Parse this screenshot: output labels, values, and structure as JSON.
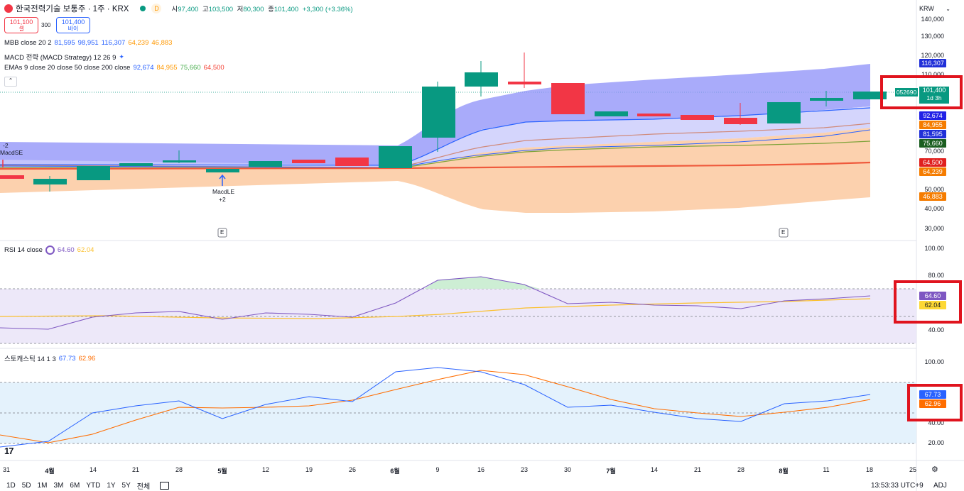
{
  "header": {
    "symbol": "한국전력기술 보통주 · 1주 · KRX",
    "interval_badge": "D",
    "ohlc": [
      {
        "k": "시",
        "v": "97,400"
      },
      {
        "k": "고",
        "v": "103,500"
      },
      {
        "k": "저",
        "v": "80,300"
      },
      {
        "k": "종",
        "v": "101,400"
      }
    ],
    "change": "+3,300 (+3.36%)",
    "currency": "KRW"
  },
  "trade": {
    "sell_price": "101,100",
    "sell_label": "셀",
    "spread": "300",
    "buy_price": "101,400",
    "buy_label": "바이"
  },
  "indicators": {
    "mbb": {
      "name": "MBB close 20 2",
      "v1": "81,595",
      "v2": "98,951",
      "v3": "116,307",
      "v4": "64,239",
      "v5": "46,883"
    },
    "macd": {
      "name": "MACD 전략 (MACD Strategy) 12 26 9"
    },
    "emas": {
      "name": "EMAs 9 close 20 close 50 close 200 close",
      "v1": "92,674",
      "v2": "84,955",
      "v3": "75,660",
      "v4": "64,500"
    }
  },
  "signals": {
    "se_count": "-2",
    "se_label": "MacdSE",
    "le_label": "MacdLE",
    "le_count": "+2",
    "earnings_marker": "E"
  },
  "price_axis": {
    "labels": [
      "140,000",
      "130,000",
      "120,000",
      "110,000",
      "70,000",
      "50,000",
      "40,000",
      "30,000"
    ],
    "tags": {
      "last": "101,400",
      "symbol_code": "052690",
      "countdown": "1d 3h",
      "upper": "116,307",
      "ema9": "92,674",
      "ema20": "84,955",
      "basis": "81,595",
      "ema50": "75,660",
      "ema200": "64,500",
      "lower1": "64,239",
      "lower2": "46,883"
    }
  },
  "rsi": {
    "name": "RSI 14 close",
    "value": "64.60",
    "ma": "62.04",
    "axis": [
      "100.00",
      "80.00",
      "40.00"
    ]
  },
  "stoch": {
    "name": "스토캐스틱 14 1 3",
    "k": "67.73",
    "d": "62.96",
    "axis": [
      "100.00",
      "40.00",
      "20.00"
    ]
  },
  "time_axis": [
    "31",
    "4월",
    "14",
    "21",
    "28",
    "5월",
    "12",
    "19",
    "26",
    "6월",
    "9",
    "16",
    "23",
    "30",
    "7월",
    "14",
    "21",
    "28",
    "8월",
    "11",
    "18",
    "25"
  ],
  "bottom": {
    "timeframes": [
      "1D",
      "5D",
      "1M",
      "3M",
      "6M",
      "YTD",
      "1Y",
      "5Y",
      "전체"
    ],
    "clock": "13:53:33 UTC+9",
    "adj": "ADJ"
  },
  "colors": {
    "up": "#089981",
    "down": "#f23645",
    "upper_band": "#7b7ff8",
    "lower_band": "#fbbf8c",
    "ema9": "#2962ff",
    "ema20": "#ff9800",
    "ema50": "#4caf50",
    "ema200": "#f44336",
    "rsi": "#7e57c2",
    "rsi_ma": "#fbc02d",
    "stoch_k": "#2962ff",
    "stoch_d": "#ff6d00"
  }
}
